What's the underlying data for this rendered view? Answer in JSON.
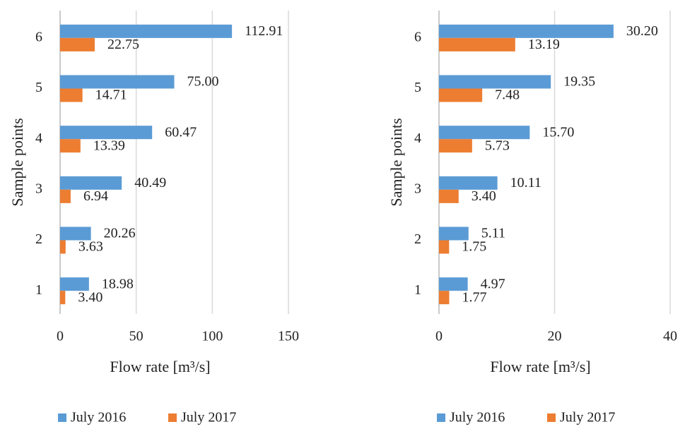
{
  "chart_data": [
    {
      "type": "bar",
      "orientation": "horizontal",
      "x_label": "Flow rate [m³/s]",
      "y_label": "Sample points",
      "categories": [
        "1",
        "2",
        "3",
        "4",
        "5",
        "6"
      ],
      "series": [
        {
          "name": "July 2016",
          "color": "#5b9bd5",
          "values": [
            18.98,
            20.26,
            40.49,
            60.47,
            75.0,
            112.91
          ],
          "value_labels": [
            "18.98",
            "20.26",
            "40.49",
            "60.47",
            "75.00",
            "112.91"
          ]
        },
        {
          "name": "July 2017",
          "color": "#ed7d31",
          "values": [
            3.4,
            3.63,
            6.94,
            13.39,
            14.71,
            22.75
          ],
          "value_labels": [
            "3.40",
            "3.63",
            "6.94",
            "13.39",
            "14.71",
            "22.75"
          ]
        }
      ],
      "xlim": [
        0,
        150
      ],
      "xticks": [
        0,
        50,
        100,
        150
      ],
      "grid": true,
      "legend": "bottom"
    },
    {
      "type": "bar",
      "orientation": "horizontal",
      "x_label": "Flow rate [m³/s]",
      "y_label": "Sample points",
      "categories": [
        "1",
        "2",
        "3",
        "4",
        "5",
        "6"
      ],
      "series": [
        {
          "name": "July 2016",
          "color": "#5b9bd5",
          "values": [
            4.97,
            5.11,
            10.11,
            15.7,
            19.35,
            30.2
          ],
          "value_labels": [
            "4.97",
            "5.11",
            "10.11",
            "15.70",
            "19.35",
            "30.20"
          ]
        },
        {
          "name": "July 2017",
          "color": "#ed7d31",
          "values": [
            1.77,
            1.75,
            3.4,
            5.73,
            7.48,
            13.19
          ],
          "value_labels": [
            "1.77",
            "1.75",
            "3.40",
            "5.73",
            "7.48",
            "13.19"
          ]
        }
      ],
      "xlim": [
        0,
        40
      ],
      "xticks": [
        0,
        20,
        40
      ],
      "grid": true,
      "legend": "bottom"
    }
  ]
}
